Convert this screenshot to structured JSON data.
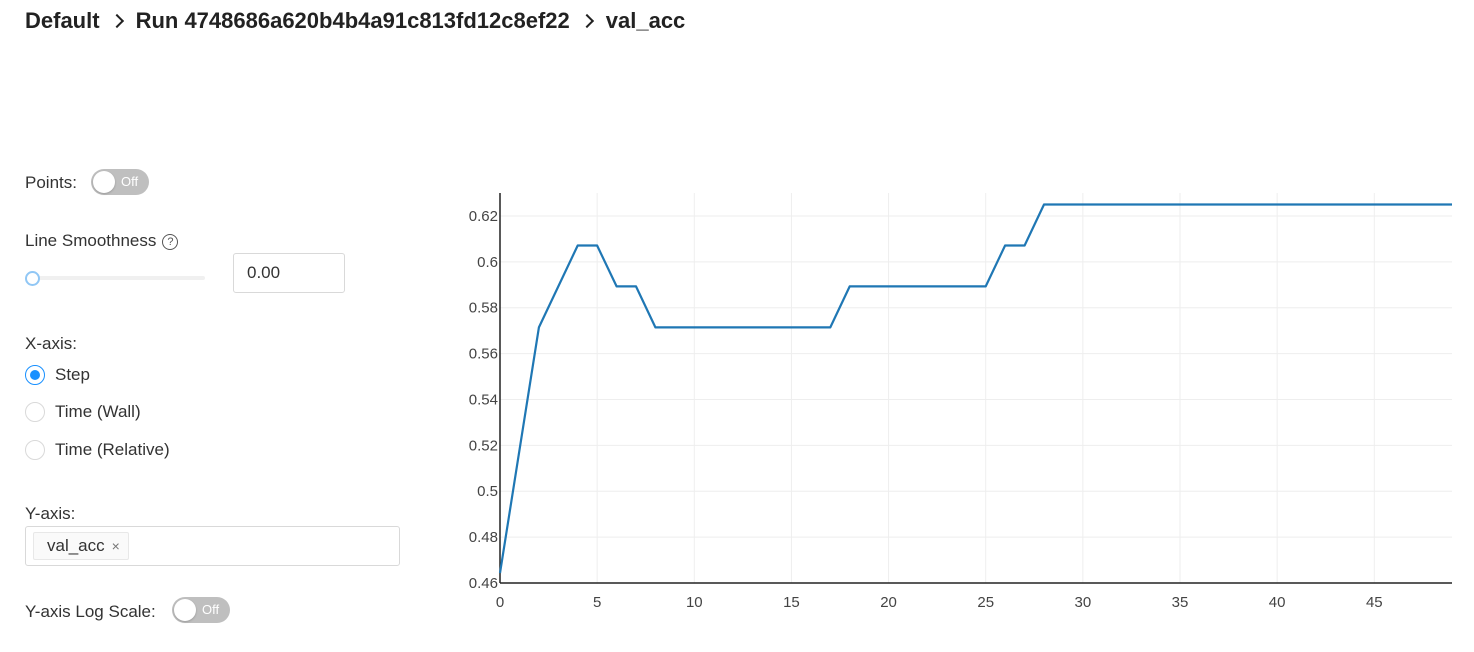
{
  "breadcrumb": {
    "experiment": "Default",
    "run": "Run 4748686a620b4b4a91c813fd12c8ef22",
    "metric": "val_acc"
  },
  "controls": {
    "points_label": "Points:",
    "points_state": "Off",
    "smoothness_label": "Line Smoothness",
    "help_icon": "?",
    "smoothness_value": "0.00",
    "smoothness_slider": 0,
    "xaxis_label": "X-axis:",
    "xaxis_options": [
      {
        "label": "Step",
        "selected": true
      },
      {
        "label": "Time (Wall)",
        "selected": false
      },
      {
        "label": "Time (Relative)",
        "selected": false
      }
    ],
    "yaxis_label": "Y-axis:",
    "yaxis_selected": "val_acc",
    "yaxis_tag_close": "×",
    "log_scale_label": "Y-axis Log Scale:",
    "log_scale_state": "Off"
  },
  "colors": {
    "line": "#1f77b4",
    "grid": "#eeeeee",
    "accent": "#1890ff",
    "switch_off": "#bfbfbf"
  },
  "chart_data": {
    "type": "line",
    "title": "",
    "xlabel": "",
    "ylabel": "",
    "xlim": [
      0,
      49
    ],
    "ylim": [
      0.46,
      0.63
    ],
    "grid": true,
    "x_ticks": [
      0,
      5,
      10,
      15,
      20,
      25,
      30,
      35,
      40,
      45
    ],
    "y_ticks": [
      0.46,
      0.48,
      0.5,
      0.52,
      0.54,
      0.56,
      0.58,
      0.6,
      0.62
    ],
    "series": [
      {
        "x": [
          0,
          2,
          4,
          5,
          6,
          7,
          8,
          17,
          18,
          25,
          26,
          27,
          28,
          49
        ],
        "y": [
          0.4643,
          0.5714,
          0.6071,
          0.6071,
          0.5893,
          0.5893,
          0.5714,
          0.5714,
          0.5893,
          0.5893,
          0.6071,
          0.6071,
          0.625,
          0.625
        ]
      }
    ]
  }
}
